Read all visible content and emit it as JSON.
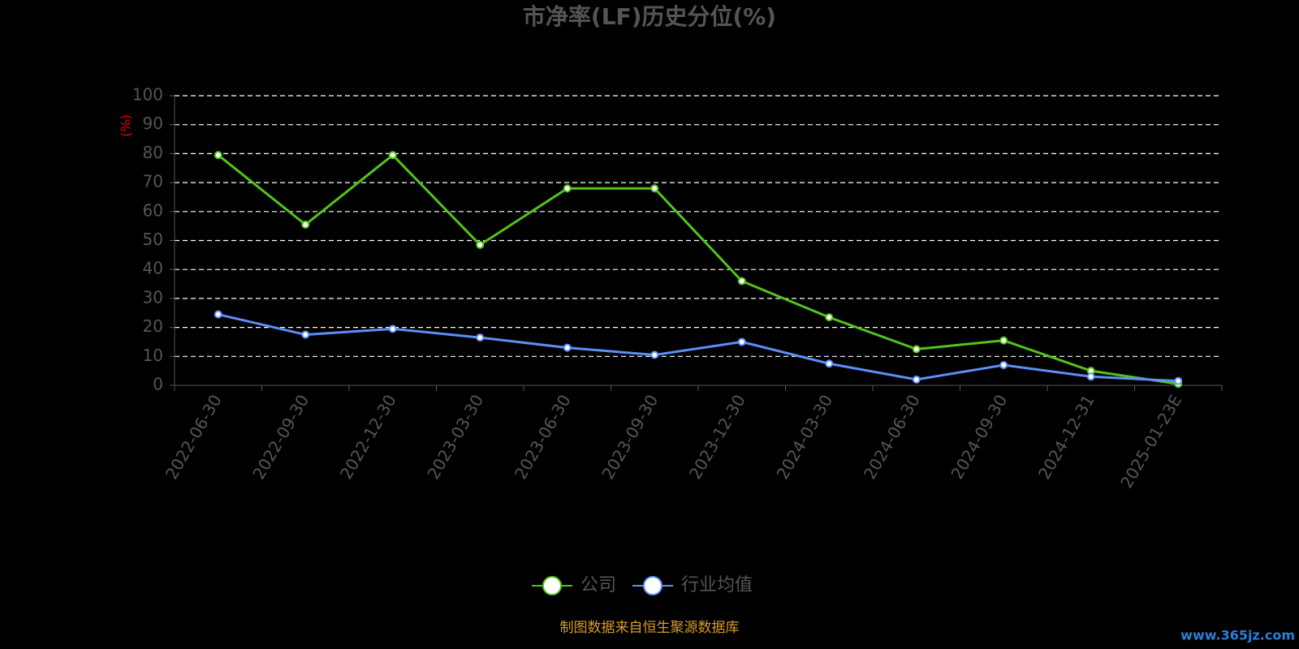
{
  "chart_data": {
    "type": "line",
    "title": "市净率(LF)历史分位(%)",
    "y_label": "(%)",
    "categories": [
      "2022-06-30",
      "2022-09-30",
      "2022-12-30",
      "2023-03-30",
      "2023-06-30",
      "2023-09-30",
      "2023-12-30",
      "2024-03-30",
      "2024-06-30",
      "2024-09-30",
      "2024-12-31",
      "2025-01-23E"
    ],
    "series": [
      {
        "name": "公司",
        "color": "#52c41a",
        "values": [
          79.5,
          55.5,
          79.5,
          48.5,
          68,
          68,
          36,
          23.5,
          12.5,
          15.5,
          5,
          0.5
        ]
      },
      {
        "name": "行业均值",
        "color": "#5b8ff9",
        "values": [
          24.5,
          17.5,
          19.5,
          16.5,
          13,
          10.5,
          15,
          7.5,
          2,
          7,
          3,
          1.5
        ]
      }
    ],
    "ylim": [
      0,
      100
    ],
    "yticks": [
      0,
      10,
      20,
      30,
      40,
      50,
      60,
      70,
      80,
      90,
      100
    ],
    "grid": true,
    "legend": "bottom",
    "source": "制图数据来自恒生聚源数据库",
    "watermark": "www.365jz.com"
  }
}
